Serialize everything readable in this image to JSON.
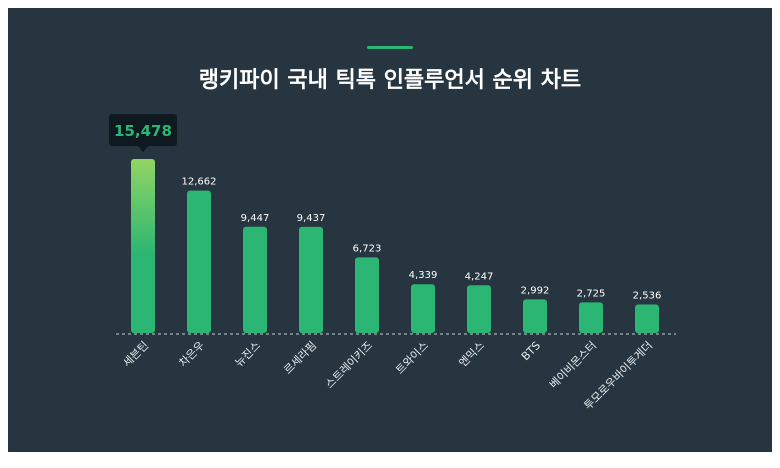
{
  "chart_data": {
    "type": "bar",
    "title": "랭키파이 국내 틱톡 인플루언서 순위 차트",
    "categories": [
      "세븐틴",
      "차은우",
      "뉴진스",
      "르세라핌",
      "스트레이키즈",
      "트와이스",
      "엔믹스",
      "BTS",
      "베이비몬스터",
      "투모로우바이투게더"
    ],
    "values": [
      15478,
      12662,
      9447,
      9437,
      6723,
      4339,
      4247,
      2992,
      2725,
      2536
    ],
    "value_labels": [
      "15,478",
      "12,662",
      "9,447",
      "9,437",
      "6,723",
      "4,339",
      "4,247",
      "2,992",
      "2,725",
      "2,536"
    ],
    "highlight_index": 0,
    "xlabel": "",
    "ylabel": "",
    "ylim": [
      0,
      15478
    ],
    "grid": false,
    "colors": {
      "bar": "#2bb673",
      "highlight_top": "#92d563",
      "tooltip_bg": "#0f1a20",
      "tooltip_text": "#2bb673",
      "background": "#263540"
    }
  }
}
